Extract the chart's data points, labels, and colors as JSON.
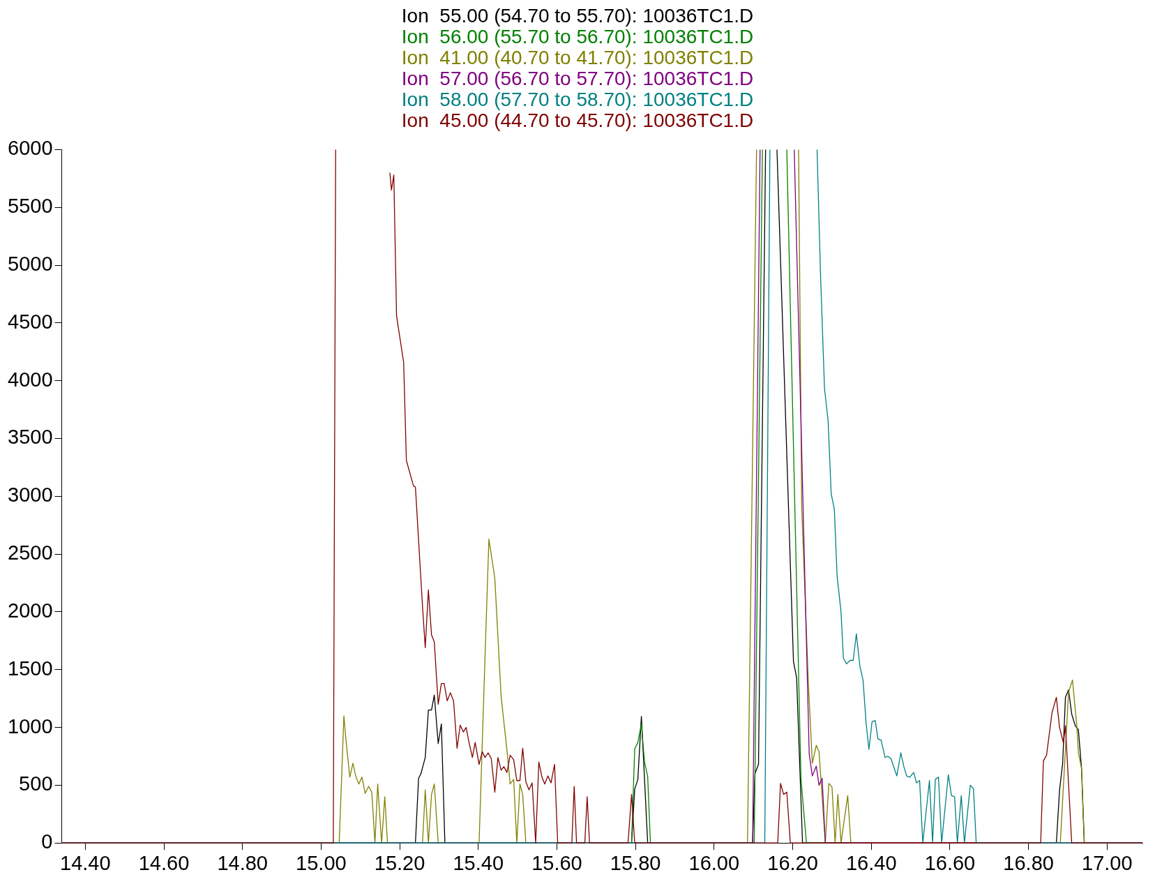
{
  "chart_data": {
    "type": "line",
    "legend": "top",
    "grid": false,
    "marker": "none",
    "line_style": "solid",
    "xlim": [
      14.34,
      17.09
    ],
    "ylim": [
      0,
      6000
    ],
    "xticks": [
      {
        "value": 14.4,
        "label": "14.40"
      },
      {
        "value": 14.6,
        "label": "14.60"
      },
      {
        "value": 14.8,
        "label": "14.80"
      },
      {
        "value": 15.0,
        "label": "15.00"
      },
      {
        "value": 15.2,
        "label": "15.20"
      },
      {
        "value": 15.4,
        "label": "15.40"
      },
      {
        "value": 15.6,
        "label": "15.60"
      },
      {
        "value": 15.8,
        "label": "15.80"
      },
      {
        "value": 16.0,
        "label": "16.00"
      },
      {
        "value": 16.2,
        "label": "16.20"
      },
      {
        "value": 16.4,
        "label": "16.40"
      },
      {
        "value": 16.6,
        "label": "16.60"
      },
      {
        "value": 16.8,
        "label": "16.80"
      },
      {
        "value": 17.0,
        "label": "17.00"
      }
    ],
    "yticks": [
      0,
      500,
      1000,
      1500,
      2000,
      2500,
      3000,
      3500,
      4000,
      4500,
      5000,
      5500,
      6000
    ],
    "series": [
      {
        "name": "Ion  55.00 (54.70 to 55.70): 10036TC1.D",
        "color": "#000000",
        "x": [
          14.34,
          15.24,
          15.248,
          15.254,
          15.265,
          15.273,
          15.281,
          15.288,
          15.298,
          15.306,
          15.315,
          15.79,
          15.798,
          15.806,
          15.815,
          15.831,
          16.098,
          16.104,
          16.113,
          16.131,
          16.14,
          16.16,
          16.202,
          16.21,
          16.225,
          16.871,
          16.879,
          16.887,
          16.894,
          16.902,
          16.91,
          16.919,
          16.927,
          16.935,
          16.942,
          17.09
        ],
        "values": [
          0,
          0,
          560,
          600,
          740,
          1150,
          1150,
          1280,
          860,
          1030,
          0,
          0,
          467,
          550,
          1095,
          0,
          0,
          600,
          680,
          6000,
          null,
          6000,
          1570,
          1430,
          0,
          0,
          455,
          690,
          1260,
          1325,
          1115,
          1015,
          980,
          645,
          0,
          0
        ]
      },
      {
        "name": "Ion  56.00 (55.70 to 56.70): 10036TC1.D",
        "color": "#008000",
        "x": [
          14.34,
          15.79,
          15.798,
          15.806,
          15.815,
          15.823,
          15.831,
          15.838,
          16.102,
          16.123,
          16.14,
          16.185,
          16.221,
          16.235,
          17.09
        ],
        "values": [
          0,
          0,
          815,
          870,
          1030,
          700,
          575,
          0,
          0,
          6000,
          null,
          6000,
          560,
          0,
          0
        ]
      },
      {
        "name": "Ion  41.00 (40.70 to 41.70): 10036TC1.D",
        "color": "#808000",
        "x": [
          14.34,
          15.046,
          15.058,
          15.063,
          15.073,
          15.081,
          15.088,
          15.096,
          15.104,
          15.112,
          15.121,
          15.129,
          15.137,
          15.144,
          15.154,
          15.162,
          15.169,
          15.258,
          15.265,
          15.273,
          15.281,
          15.288,
          15.298,
          15.402,
          15.417,
          15.427,
          15.442,
          15.458,
          15.473,
          15.481,
          15.49,
          15.498,
          15.506,
          15.513,
          15.521,
          16.085,
          16.108,
          16.15,
          16.215,
          16.223,
          16.24,
          16.25,
          16.26,
          16.267,
          16.283,
          16.292,
          16.3,
          16.308,
          16.315,
          16.323,
          16.34,
          16.348,
          16.881,
          16.902,
          16.912,
          16.923,
          16.927,
          16.935,
          16.942,
          17.09
        ],
        "values": [
          0,
          0,
          1100,
          900,
          570,
          690,
          580,
          510,
          570,
          430,
          490,
          440,
          0,
          510,
          0,
          400,
          0,
          0,
          460,
          0,
          420,
          510,
          0,
          0,
          1600,
          2630,
          2290,
          1270,
          800,
          510,
          550,
          0,
          510,
          420,
          0,
          0,
          6000,
          null,
          6000,
          2900,
          1375,
          690,
          845,
          790,
          0,
          515,
          485,
          0,
          420,
          0,
          410,
          0,
          0,
          1305,
          1410,
          1015,
          780,
          645,
          0,
          0
        ]
      },
      {
        "name": "Ion  57.00 (56.70 to 57.70): 10036TC1.D",
        "color": "#800080",
        "x": [
          14.34,
          16.098,
          16.117,
          16.15,
          16.204,
          16.242,
          16.25,
          16.26,
          16.267,
          16.275,
          16.283,
          17.09
        ],
        "values": [
          0,
          0,
          6000,
          null,
          6000,
          770,
          580,
          665,
          500,
          560,
          0,
          0
        ]
      },
      {
        "name": "Ion  58.00 (57.70 to 58.70): 10036TC1.D",
        "color": "#008080",
        "x": [
          14.34,
          16.129,
          16.142,
          16.17,
          16.262,
          16.271,
          16.281,
          16.29,
          16.298,
          16.306,
          16.313,
          16.323,
          16.329,
          16.337,
          16.346,
          16.354,
          16.362,
          16.371,
          16.379,
          16.387,
          16.394,
          16.402,
          16.41,
          16.417,
          16.425,
          16.435,
          16.442,
          16.45,
          16.458,
          16.465,
          16.475,
          16.483,
          16.49,
          16.498,
          16.508,
          16.515,
          16.523,
          16.531,
          16.548,
          16.556,
          16.563,
          16.571,
          16.579,
          16.596,
          16.604,
          16.612,
          16.619,
          16.629,
          16.637,
          16.652,
          16.66,
          16.667,
          17.09
        ],
        "values": [
          0,
          0,
          6000,
          null,
          6000,
          4900,
          3930,
          3660,
          3020,
          2890,
          2310,
          2000,
          1600,
          1550,
          1580,
          1580,
          1810,
          1530,
          1410,
          1030,
          810,
          1050,
          1060,
          900,
          890,
          740,
          750,
          730,
          650,
          580,
          780,
          660,
          580,
          570,
          610,
          520,
          540,
          0,
          540,
          0,
          550,
          570,
          0,
          590,
          410,
          400,
          0,
          410,
          0,
          500,
          470,
          0,
          0
        ]
      },
      {
        "name": "Ion  45.00 (44.70 to 45.70): 10036TC1.D",
        "color": "#800000",
        "x": [
          14.34,
          15.031,
          15.037,
          15.1,
          15.175,
          15.179,
          15.185,
          15.192,
          15.21,
          15.217,
          15.235,
          15.24,
          15.258,
          15.265,
          15.273,
          15.281,
          15.288,
          15.298,
          15.306,
          15.313,
          15.321,
          15.329,
          15.337,
          15.346,
          15.354,
          15.362,
          15.369,
          15.377,
          15.385,
          15.392,
          15.402,
          15.41,
          15.417,
          15.425,
          15.433,
          15.442,
          15.45,
          15.458,
          15.465,
          15.473,
          15.481,
          15.49,
          15.498,
          15.506,
          15.513,
          15.521,
          15.529,
          15.537,
          15.546,
          15.554,
          15.562,
          15.569,
          15.577,
          15.585,
          15.594,
          15.602,
          15.638,
          15.644,
          15.65,
          15.671,
          15.677,
          15.683,
          15.781,
          15.79,
          15.798,
          16.162,
          16.169,
          16.177,
          16.185,
          16.194,
          16.831,
          16.838,
          16.846,
          16.86,
          16.871,
          16.879,
          16.889,
          16.894,
          16.91,
          17.09
        ],
        "values": [
          0,
          0,
          6000,
          null,
          5800,
          5650,
          5780,
          4560,
          4160,
          3310,
          3090,
          3080,
          2050,
          1690,
          2190,
          1800,
          1740,
          1200,
          1380,
          1380,
          1230,
          1300,
          1230,
          820,
          1020,
          960,
          1000,
          860,
          740,
          870,
          680,
          790,
          740,
          780,
          730,
          440,
          740,
          630,
          660,
          610,
          760,
          720,
          540,
          540,
          820,
          530,
          460,
          520,
          0,
          700,
          570,
          510,
          580,
          520,
          680,
          0,
          0,
          490,
          0,
          0,
          400,
          0,
          0,
          420,
          0,
          0,
          515,
          420,
          440,
          0,
          0,
          710,
          760,
          1130,
          1260,
          1000,
          865,
          1015,
          0,
          0
        ]
      }
    ]
  }
}
